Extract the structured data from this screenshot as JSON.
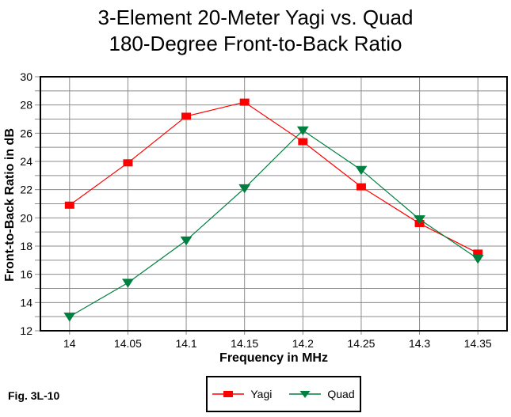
{
  "figure": {
    "title_line1": "3-Element 20-Meter Yagi vs. Quad",
    "title_line2": "180-Degree Front-to-Back Ratio",
    "fig_label": "Fig. 3L-10"
  },
  "chart_data": {
    "type": "line",
    "title": "3-Element 20-Meter Yagi vs. Quad  180-Degree Front-to-Back Ratio",
    "xlabel": "Frequency in MHz",
    "ylabel": "Front-to-Back Ratio in dB",
    "x": [
      14,
      14.05,
      14.1,
      14.15,
      14.2,
      14.25,
      14.3,
      14.35
    ],
    "x_tick_labels": [
      "14",
      "14.05",
      "14.1",
      "14.15",
      "14.2",
      "14.25",
      "14.3",
      "14.35"
    ],
    "y_major_ticks": [
      12,
      14,
      16,
      18,
      20,
      22,
      24,
      26,
      28,
      30
    ],
    "y_minor_step": 1,
    "xlim": [
      13.975,
      14.375
    ],
    "ylim": [
      12,
      30
    ],
    "grid": true,
    "legend_position": "bottom-center",
    "colors": {
      "grid": "#8c8c8c",
      "axis": "#000000",
      "background": "#ffffff"
    },
    "series": [
      {
        "name": "Yagi",
        "color": "#ff0000",
        "marker": "square",
        "values": [
          20.9,
          23.9,
          27.2,
          28.2,
          25.4,
          22.2,
          19.6,
          17.5
        ]
      },
      {
        "name": "Quad",
        "color": "#008040",
        "marker": "triangle-down",
        "values": [
          13.0,
          15.4,
          18.4,
          22.1,
          26.2,
          23.4,
          19.9,
          17.1
        ]
      }
    ]
  }
}
